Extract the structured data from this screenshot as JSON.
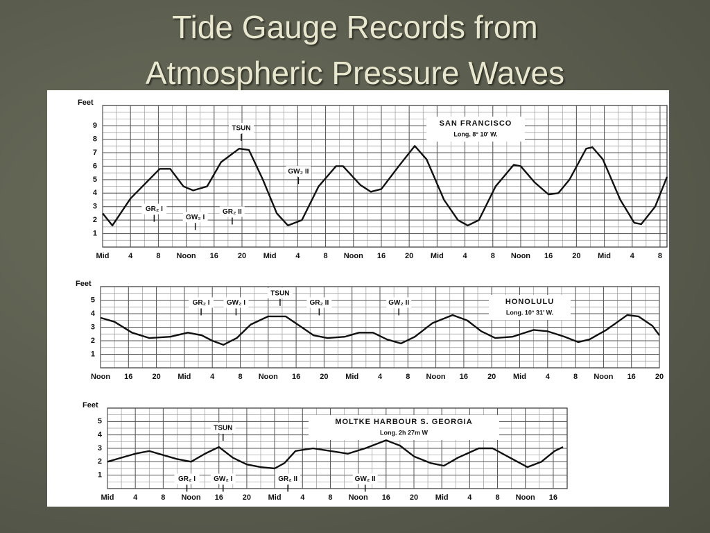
{
  "slide": {
    "title": [
      "Tide Gauge Records from",
      "Atmospheric Pressure Waves"
    ]
  },
  "chart_data": [
    {
      "type": "line",
      "location": "SAN FRANCISCO",
      "longitude": "Long. 8° 10' W.",
      "y_label": "Feet",
      "color": "#111111",
      "xlim": [
        0,
        81
      ],
      "ylim": [
        0,
        10.5
      ],
      "yticks": [
        1,
        2,
        3,
        4,
        5,
        6,
        7,
        8,
        9
      ],
      "xticks": [
        {
          "value": 0,
          "label": "Mid"
        },
        4,
        8,
        {
          "value": 12,
          "label": "Noon"
        },
        16,
        20,
        {
          "value": 24,
          "label": "Mid"
        },
        {
          "value": 28,
          "label": "4"
        },
        {
          "value": 32,
          "label": "8"
        },
        {
          "value": 36,
          "label": "Noon"
        },
        {
          "value": 40,
          "label": "16"
        },
        {
          "value": 44,
          "label": "20"
        },
        {
          "value": 48,
          "label": "Mid"
        },
        {
          "value": 52,
          "label": "4"
        },
        {
          "value": 56,
          "label": "8"
        },
        {
          "value": 60,
          "label": "Noon"
        },
        {
          "value": 64,
          "label": "16"
        },
        {
          "value": 68,
          "label": "20"
        },
        {
          "value": 72,
          "label": "Mid"
        },
        {
          "value": 76,
          "label": "4"
        },
        {
          "value": 80,
          "label": "8"
        }
      ],
      "x": [
        0,
        1.4,
        4,
        8.2,
        9.7,
        11.6,
        13,
        15,
        17,
        19.6,
        21,
        23,
        25,
        26.6,
        28.6,
        31,
        33.5,
        34.5,
        37,
        38.5,
        40,
        42.5,
        44.8,
        46.5,
        49,
        51,
        52.4,
        54,
        56.4,
        59,
        60,
        62,
        64,
        65.4,
        67,
        69.4,
        70.3,
        71.8,
        74.3,
        76.3,
        77.3,
        79.3,
        81
      ],
      "values": [
        2.5,
        1.6,
        3.6,
        5.8,
        5.8,
        4.5,
        4.2,
        4.5,
        6.3,
        7.3,
        7.2,
        5,
        2.5,
        1.6,
        2,
        4.5,
        6,
        6,
        4.6,
        4.1,
        4.3,
        6,
        7.5,
        6.5,
        3.5,
        2,
        1.6,
        2,
        4.5,
        6.1,
        6,
        4.8,
        3.9,
        4,
        5,
        7.3,
        7.4,
        6.5,
        3.5,
        1.8,
        1.7,
        3,
        5.2
      ],
      "annotations": [
        {
          "text": "TSUN",
          "x": 19.9,
          "y": 8.8
        },
        {
          "text": "GR₂ I",
          "x": 7.4,
          "y": 2.8
        },
        {
          "text": "GW₂ I",
          "x": 13.3,
          "y": 2.2
        },
        {
          "text": "GR₂ II",
          "x": 18.6,
          "y": 2.6
        },
        {
          "text": "GW₂ II",
          "x": 28.1,
          "y": 5.6
        }
      ]
    },
    {
      "type": "line",
      "location": "HONOLULU",
      "longitude": "Long. 10° 31' W.",
      "y_label": "Feet",
      "color": "#111111",
      "xlim": [
        12,
        92
      ],
      "ylim": [
        0,
        6
      ],
      "yticks": [
        1,
        2,
        3,
        4,
        5
      ],
      "xticks": [
        {
          "value": 12,
          "label": "Noon"
        },
        16,
        20,
        {
          "value": 24,
          "label": "Mid"
        },
        {
          "value": 28,
          "label": "4"
        },
        {
          "value": 32,
          "label": "8"
        },
        {
          "value": 36,
          "label": "Noon"
        },
        {
          "value": 40,
          "label": "16"
        },
        {
          "value": 44,
          "label": "20"
        },
        {
          "value": 48,
          "label": "Mid"
        },
        {
          "value": 52,
          "label": "4"
        },
        {
          "value": 56,
          "label": "8"
        },
        {
          "value": 60,
          "label": "Noon"
        },
        {
          "value": 64,
          "label": "16"
        },
        {
          "value": 68,
          "label": "20"
        },
        {
          "value": 72,
          "label": "Mid"
        },
        {
          "value": 76,
          "label": "4"
        },
        {
          "value": 80,
          "label": "8"
        },
        {
          "value": 84,
          "label": "Noon"
        },
        {
          "value": 88,
          "label": "16"
        },
        {
          "value": 92,
          "label": "20"
        }
      ],
      "x": [
        12,
        14,
        16.5,
        19,
        22,
        24.5,
        26.5,
        28,
        29.6,
        31.5,
        33.5,
        36,
        38.5,
        40.5,
        42.5,
        44.5,
        47,
        49,
        51,
        53,
        55,
        57,
        59.5,
        62.4,
        64.5,
        66.5,
        68.5,
        71,
        74,
        76,
        78.4,
        80.4,
        82,
        84.4,
        87.4,
        89,
        91,
        92
      ],
      "values": [
        3.7,
        3.4,
        2.6,
        2.2,
        2.3,
        2.6,
        2.4,
        2,
        1.7,
        2.2,
        3.2,
        3.8,
        3.8,
        3.1,
        2.4,
        2.2,
        2.3,
        2.6,
        2.6,
        2.1,
        1.8,
        2.3,
        3.3,
        3.9,
        3.5,
        2.7,
        2.2,
        2.3,
        2.8,
        2.7,
        2.3,
        1.9,
        2.1,
        2.8,
        3.9,
        3.8,
        3.1,
        2.4
      ],
      "annotations": [
        {
          "text": "GR₂ I",
          "x": 26.4,
          "y": 4.8
        },
        {
          "text": "GW₂ I",
          "x": 31.4,
          "y": 4.8
        },
        {
          "text": "TSUN",
          "x": 37.7,
          "y": 5.5
        },
        {
          "text": "GR₂ II",
          "x": 43.3,
          "y": 4.8
        },
        {
          "text": "GW₂ II",
          "x": 54.7,
          "y": 4.8
        }
      ]
    },
    {
      "type": "line",
      "location": "MOLTKE HARBOUR S. GEORGIA",
      "longitude": "Long. 2h 27m W",
      "y_label": "Feet",
      "color": "#111111",
      "xlim": [
        0,
        66
      ],
      "ylim": [
        0,
        6
      ],
      "yticks": [
        1,
        2,
        3,
        4,
        5
      ],
      "xticks": [
        {
          "value": 0,
          "label": "Mid"
        },
        4,
        8,
        {
          "value": 12,
          "label": "Noon"
        },
        16,
        20,
        {
          "value": 24,
          "label": "Mid"
        },
        {
          "value": 28,
          "label": "4"
        },
        {
          "value": 32,
          "label": "8"
        },
        {
          "value": 36,
          "label": "Noon"
        },
        {
          "value": 40,
          "label": "16"
        },
        {
          "value": 44,
          "label": "20"
        },
        {
          "value": 48,
          "label": "Mid"
        },
        {
          "value": 52,
          "label": "4"
        },
        {
          "value": 56,
          "label": "8"
        },
        {
          "value": 60,
          "label": "Noon"
        },
        {
          "value": 64,
          "label": "16"
        }
      ],
      "x": [
        0,
        2,
        4,
        6,
        8,
        10,
        12,
        14,
        16,
        18,
        20,
        22,
        24,
        25.4,
        27,
        29.5,
        32,
        34.5,
        37,
        40,
        42,
        44,
        46.4,
        48.3,
        50.3,
        53.3,
        55.3,
        57.8,
        60.3,
        62.3,
        64.2,
        65.4
      ],
      "values": [
        2,
        2.3,
        2.6,
        2.8,
        2.5,
        2.2,
        2,
        2.6,
        3.1,
        2.3,
        1.8,
        1.6,
        1.5,
        1.9,
        2.8,
        3,
        2.8,
        2.6,
        3,
        3.6,
        3.2,
        2.4,
        1.9,
        1.7,
        2.3,
        3,
        3,
        2.3,
        1.6,
        2,
        2.8,
        3.1
      ],
      "annotations": [
        {
          "text": "TSUN",
          "x": 16.6,
          "y": 4.5
        },
        {
          "text": "GR₂ I",
          "x": 11.4,
          "y": 0.7
        },
        {
          "text": "GW₂ I",
          "x": 16.6,
          "y": 0.7
        },
        {
          "text": "GR₂ II",
          "x": 25.9,
          "y": 0.7
        },
        {
          "text": "GW₂ II",
          "x": 37,
          "y": 0.7
        }
      ]
    }
  ]
}
